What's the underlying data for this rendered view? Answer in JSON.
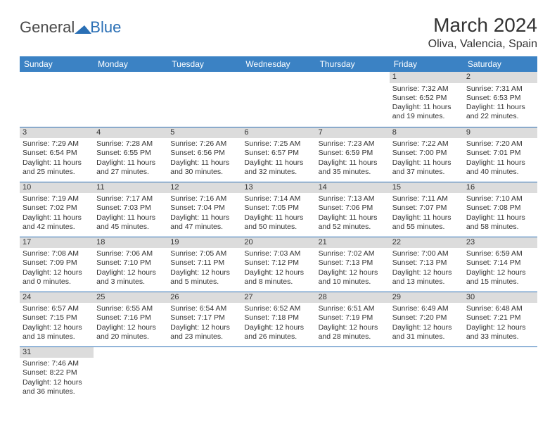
{
  "logo": {
    "text1": "General",
    "text2": "Blue",
    "color1": "#4a4a4a",
    "color2": "#2a6fb5"
  },
  "title": "March 2024",
  "location": "Oliva, Valencia, Spain",
  "header_bg": "#3b82c4",
  "header_fg": "#ffffff",
  "daynum_bg": "#dcdcdc",
  "border_color": "#2a6fb5",
  "weekdays": [
    "Sunday",
    "Monday",
    "Tuesday",
    "Wednesday",
    "Thursday",
    "Friday",
    "Saturday"
  ],
  "weeks": [
    [
      null,
      null,
      null,
      null,
      null,
      {
        "n": "1",
        "sr": "Sunrise: 7:32 AM",
        "ss": "Sunset: 6:52 PM",
        "dl1": "Daylight: 11 hours",
        "dl2": "and 19 minutes."
      },
      {
        "n": "2",
        "sr": "Sunrise: 7:31 AM",
        "ss": "Sunset: 6:53 PM",
        "dl1": "Daylight: 11 hours",
        "dl2": "and 22 minutes."
      }
    ],
    [
      {
        "n": "3",
        "sr": "Sunrise: 7:29 AM",
        "ss": "Sunset: 6:54 PM",
        "dl1": "Daylight: 11 hours",
        "dl2": "and 25 minutes."
      },
      {
        "n": "4",
        "sr": "Sunrise: 7:28 AM",
        "ss": "Sunset: 6:55 PM",
        "dl1": "Daylight: 11 hours",
        "dl2": "and 27 minutes."
      },
      {
        "n": "5",
        "sr": "Sunrise: 7:26 AM",
        "ss": "Sunset: 6:56 PM",
        "dl1": "Daylight: 11 hours",
        "dl2": "and 30 minutes."
      },
      {
        "n": "6",
        "sr": "Sunrise: 7:25 AM",
        "ss": "Sunset: 6:57 PM",
        "dl1": "Daylight: 11 hours",
        "dl2": "and 32 minutes."
      },
      {
        "n": "7",
        "sr": "Sunrise: 7:23 AM",
        "ss": "Sunset: 6:59 PM",
        "dl1": "Daylight: 11 hours",
        "dl2": "and 35 minutes."
      },
      {
        "n": "8",
        "sr": "Sunrise: 7:22 AM",
        "ss": "Sunset: 7:00 PM",
        "dl1": "Daylight: 11 hours",
        "dl2": "and 37 minutes."
      },
      {
        "n": "9",
        "sr": "Sunrise: 7:20 AM",
        "ss": "Sunset: 7:01 PM",
        "dl1": "Daylight: 11 hours",
        "dl2": "and 40 minutes."
      }
    ],
    [
      {
        "n": "10",
        "sr": "Sunrise: 7:19 AM",
        "ss": "Sunset: 7:02 PM",
        "dl1": "Daylight: 11 hours",
        "dl2": "and 42 minutes."
      },
      {
        "n": "11",
        "sr": "Sunrise: 7:17 AM",
        "ss": "Sunset: 7:03 PM",
        "dl1": "Daylight: 11 hours",
        "dl2": "and 45 minutes."
      },
      {
        "n": "12",
        "sr": "Sunrise: 7:16 AM",
        "ss": "Sunset: 7:04 PM",
        "dl1": "Daylight: 11 hours",
        "dl2": "and 47 minutes."
      },
      {
        "n": "13",
        "sr": "Sunrise: 7:14 AM",
        "ss": "Sunset: 7:05 PM",
        "dl1": "Daylight: 11 hours",
        "dl2": "and 50 minutes."
      },
      {
        "n": "14",
        "sr": "Sunrise: 7:13 AM",
        "ss": "Sunset: 7:06 PM",
        "dl1": "Daylight: 11 hours",
        "dl2": "and 52 minutes."
      },
      {
        "n": "15",
        "sr": "Sunrise: 7:11 AM",
        "ss": "Sunset: 7:07 PM",
        "dl1": "Daylight: 11 hours",
        "dl2": "and 55 minutes."
      },
      {
        "n": "16",
        "sr": "Sunrise: 7:10 AM",
        "ss": "Sunset: 7:08 PM",
        "dl1": "Daylight: 11 hours",
        "dl2": "and 58 minutes."
      }
    ],
    [
      {
        "n": "17",
        "sr": "Sunrise: 7:08 AM",
        "ss": "Sunset: 7:09 PM",
        "dl1": "Daylight: 12 hours",
        "dl2": "and 0 minutes."
      },
      {
        "n": "18",
        "sr": "Sunrise: 7:06 AM",
        "ss": "Sunset: 7:10 PM",
        "dl1": "Daylight: 12 hours",
        "dl2": "and 3 minutes."
      },
      {
        "n": "19",
        "sr": "Sunrise: 7:05 AM",
        "ss": "Sunset: 7:11 PM",
        "dl1": "Daylight: 12 hours",
        "dl2": "and 5 minutes."
      },
      {
        "n": "20",
        "sr": "Sunrise: 7:03 AM",
        "ss": "Sunset: 7:12 PM",
        "dl1": "Daylight: 12 hours",
        "dl2": "and 8 minutes."
      },
      {
        "n": "21",
        "sr": "Sunrise: 7:02 AM",
        "ss": "Sunset: 7:13 PM",
        "dl1": "Daylight: 12 hours",
        "dl2": "and 10 minutes."
      },
      {
        "n": "22",
        "sr": "Sunrise: 7:00 AM",
        "ss": "Sunset: 7:13 PM",
        "dl1": "Daylight: 12 hours",
        "dl2": "and 13 minutes."
      },
      {
        "n": "23",
        "sr": "Sunrise: 6:59 AM",
        "ss": "Sunset: 7:14 PM",
        "dl1": "Daylight: 12 hours",
        "dl2": "and 15 minutes."
      }
    ],
    [
      {
        "n": "24",
        "sr": "Sunrise: 6:57 AM",
        "ss": "Sunset: 7:15 PM",
        "dl1": "Daylight: 12 hours",
        "dl2": "and 18 minutes."
      },
      {
        "n": "25",
        "sr": "Sunrise: 6:55 AM",
        "ss": "Sunset: 7:16 PM",
        "dl1": "Daylight: 12 hours",
        "dl2": "and 20 minutes."
      },
      {
        "n": "26",
        "sr": "Sunrise: 6:54 AM",
        "ss": "Sunset: 7:17 PM",
        "dl1": "Daylight: 12 hours",
        "dl2": "and 23 minutes."
      },
      {
        "n": "27",
        "sr": "Sunrise: 6:52 AM",
        "ss": "Sunset: 7:18 PM",
        "dl1": "Daylight: 12 hours",
        "dl2": "and 26 minutes."
      },
      {
        "n": "28",
        "sr": "Sunrise: 6:51 AM",
        "ss": "Sunset: 7:19 PM",
        "dl1": "Daylight: 12 hours",
        "dl2": "and 28 minutes."
      },
      {
        "n": "29",
        "sr": "Sunrise: 6:49 AM",
        "ss": "Sunset: 7:20 PM",
        "dl1": "Daylight: 12 hours",
        "dl2": "and 31 minutes."
      },
      {
        "n": "30",
        "sr": "Sunrise: 6:48 AM",
        "ss": "Sunset: 7:21 PM",
        "dl1": "Daylight: 12 hours",
        "dl2": "and 33 minutes."
      }
    ],
    [
      {
        "n": "31",
        "sr": "Sunrise: 7:46 AM",
        "ss": "Sunset: 8:22 PM",
        "dl1": "Daylight: 12 hours",
        "dl2": "and 36 minutes."
      },
      null,
      null,
      null,
      null,
      null,
      null
    ]
  ]
}
